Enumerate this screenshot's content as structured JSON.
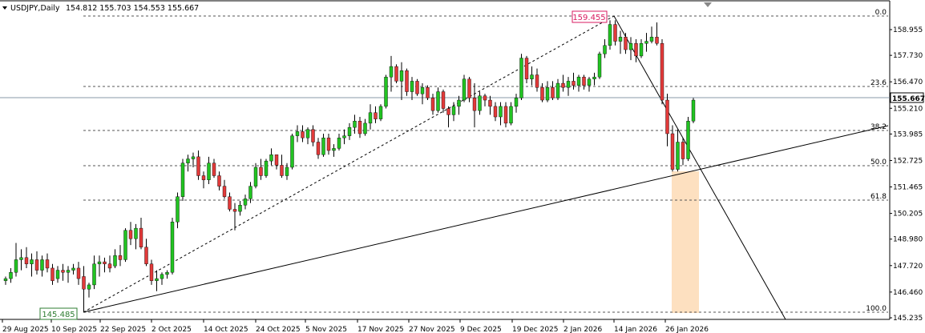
{
  "header": {
    "symbol": "USDJPY,Daily",
    "ohlc": "154.812 155.703 154.553 155.667"
  },
  "colors": {
    "up": "#22c322",
    "down": "#e23a3a",
    "wick": "#000000",
    "zone": "#fde0c0",
    "high_label": "#d81b60",
    "low_label": "#2e7d32"
  },
  "fib_levels": [
    "0.0",
    "23.6",
    "38.2",
    "50.0",
    "61.8",
    "100.0"
  ],
  "labels": {
    "high": "159.455",
    "low": "145.485",
    "current_price": "155.667"
  },
  "chart_data": {
    "type": "candlestick",
    "y_ticks": [
      "158.955",
      "157.730",
      "156.470",
      "155.210",
      "153.985",
      "152.725",
      "151.465",
      "150.205",
      "148.980",
      "147.720",
      "146.460",
      "145.235"
    ],
    "x_ticks": [
      "29 Aug 2025",
      "10 Sep 2025",
      "22 Sep 2025",
      "2 Oct 2025",
      "14 Oct 2025",
      "24 Oct 2025",
      "5 Nov 2025",
      "17 Nov 2025",
      "27 Nov 2025",
      "9 Dec 2025",
      "19 Dec 2025",
      "2 Jan 2026",
      "14 Jan 2026",
      "26 Jan 2026"
    ],
    "ylim": [
      145.1,
      160.5
    ],
    "candles": [
      [
        147.0,
        147.2,
        146.8,
        147.1
      ],
      [
        147.1,
        147.6,
        146.9,
        147.4
      ],
      [
        147.4,
        148.8,
        147.2,
        148.0
      ],
      [
        148.0,
        148.5,
        147.5,
        148.1
      ],
      [
        148.1,
        148.6,
        147.6,
        147.8
      ],
      [
        147.8,
        148.3,
        147.2,
        148.0
      ],
      [
        148.0,
        148.4,
        147.3,
        147.5
      ],
      [
        147.5,
        148.2,
        147.2,
        148.0
      ],
      [
        148.0,
        148.3,
        147.4,
        147.6
      ],
      [
        147.6,
        147.8,
        146.8,
        147.0
      ],
      [
        147.1,
        147.7,
        146.9,
        147.5
      ],
      [
        147.5,
        147.8,
        147.0,
        147.4
      ],
      [
        147.4,
        147.7,
        146.9,
        147.5
      ],
      [
        147.5,
        147.8,
        147.3,
        147.6
      ],
      [
        147.6,
        147.9,
        146.8,
        147.1
      ],
      [
        147.2,
        147.7,
        145.5,
        146.6
      ],
      [
        146.6,
        146.9,
        146.2,
        146.8
      ],
      [
        146.8,
        148.2,
        146.6,
        147.8
      ],
      [
        147.8,
        148.2,
        147.2,
        147.9
      ],
      [
        147.9,
        148.1,
        147.4,
        147.8
      ],
      [
        147.8,
        148.2,
        147.4,
        147.6
      ],
      [
        147.7,
        148.5,
        147.6,
        148.2
      ],
      [
        148.2,
        148.7,
        147.7,
        148.0
      ],
      [
        148.0,
        149.5,
        147.9,
        149.4
      ],
      [
        149.4,
        149.8,
        148.7,
        149.0
      ],
      [
        149.0,
        149.7,
        148.5,
        149.5
      ],
      [
        149.5,
        150.0,
        148.5,
        148.6
      ],
      [
        148.6,
        149.0,
        147.7,
        147.8
      ],
      [
        147.8,
        148.0,
        146.8,
        147.0
      ],
      [
        147.0,
        147.5,
        146.5,
        147.1
      ],
      [
        147.1,
        147.4,
        146.8,
        147.3
      ],
      [
        147.3,
        147.5,
        147.1,
        147.4
      ],
      [
        147.4,
        150.0,
        147.3,
        149.8
      ],
      [
        149.8,
        151.2,
        149.5,
        151.0
      ],
      [
        151.0,
        152.8,
        150.8,
        152.6
      ],
      [
        152.6,
        153.0,
        152.2,
        152.8
      ],
      [
        152.8,
        153.1,
        152.4,
        152.9
      ],
      [
        152.9,
        153.2,
        151.8,
        152.0
      ],
      [
        152.0,
        152.2,
        151.4,
        151.8
      ],
      [
        151.8,
        152.9,
        151.6,
        152.6
      ],
      [
        152.6,
        152.8,
        151.9,
        152.0
      ],
      [
        152.0,
        152.2,
        151.3,
        151.5
      ],
      [
        151.5,
        151.8,
        150.9,
        151.0
      ],
      [
        151.0,
        151.2,
        150.3,
        150.4
      ],
      [
        150.4,
        150.7,
        149.4,
        150.3
      ],
      [
        150.3,
        150.8,
        150.1,
        150.6
      ],
      [
        150.6,
        151.1,
        150.4,
        150.9
      ],
      [
        150.9,
        151.7,
        150.7,
        151.5
      ],
      [
        151.5,
        152.6,
        151.4,
        152.4
      ],
      [
        152.4,
        152.8,
        151.8,
        152.0
      ],
      [
        152.0,
        152.8,
        151.9,
        152.7
      ],
      [
        152.7,
        153.3,
        152.5,
        153.0
      ],
      [
        153.0,
        153.0,
        152.3,
        152.5
      ],
      [
        152.5,
        153.0,
        151.9,
        152.0
      ],
      [
        152.0,
        152.6,
        151.8,
        152.4
      ],
      [
        152.4,
        154.0,
        152.3,
        153.9
      ],
      [
        153.9,
        154.4,
        153.6,
        154.1
      ],
      [
        154.1,
        154.4,
        153.6,
        153.8
      ],
      [
        153.8,
        154.3,
        153.5,
        154.2
      ],
      [
        154.2,
        154.4,
        153.4,
        153.6
      ],
      [
        153.6,
        153.8,
        152.8,
        153.0
      ],
      [
        153.0,
        154.0,
        152.9,
        153.8
      ],
      [
        153.8,
        154.0,
        153.0,
        153.2
      ],
      [
        153.2,
        153.5,
        152.9,
        153.3
      ],
      [
        153.3,
        154.0,
        153.2,
        153.8
      ],
      [
        153.8,
        154.2,
        153.5,
        153.9
      ],
      [
        153.9,
        154.5,
        153.7,
        154.3
      ],
      [
        154.3,
        154.9,
        154.0,
        154.6
      ],
      [
        154.6,
        154.8,
        153.8,
        154.0
      ],
      [
        154.0,
        154.7,
        153.9,
        154.5
      ],
      [
        154.5,
        155.4,
        154.2,
        155.0
      ],
      [
        155.0,
        155.3,
        154.5,
        154.7
      ],
      [
        154.7,
        155.4,
        154.6,
        155.3
      ],
      [
        155.3,
        156.8,
        155.2,
        156.7
      ],
      [
        156.7,
        157.7,
        156.0,
        157.2
      ],
      [
        157.2,
        157.3,
        156.4,
        156.5
      ],
      [
        156.5,
        157.4,
        155.6,
        157.0
      ],
      [
        157.0,
        157.1,
        155.8,
        156.0
      ],
      [
        156.0,
        156.7,
        155.6,
        156.5
      ],
      [
        156.5,
        156.6,
        155.8,
        155.9
      ],
      [
        155.9,
        156.4,
        155.4,
        156.2
      ],
      [
        156.2,
        156.3,
        155.6,
        155.7
      ],
      [
        155.7,
        155.9,
        154.9,
        155.1
      ],
      [
        155.1,
        156.2,
        155.0,
        156.0
      ],
      [
        156.0,
        156.1,
        155.0,
        155.2
      ],
      [
        155.2,
        155.3,
        154.3,
        154.9
      ],
      [
        154.9,
        155.5,
        154.6,
        155.3
      ],
      [
        155.3,
        155.8,
        154.9,
        155.6
      ],
      [
        155.6,
        156.8,
        155.5,
        156.6
      ],
      [
        156.6,
        156.7,
        155.5,
        155.7
      ],
      [
        155.7,
        156.4,
        154.3,
        155.1
      ],
      [
        155.1,
        156.0,
        154.9,
        155.8
      ],
      [
        155.8,
        155.9,
        155.3,
        155.6
      ],
      [
        155.6,
        155.8,
        154.9,
        155.3
      ],
      [
        155.3,
        155.5,
        154.6,
        154.8
      ],
      [
        154.8,
        155.5,
        154.4,
        155.3
      ],
      [
        155.3,
        155.5,
        154.3,
        154.5
      ],
      [
        154.5,
        155.5,
        154.4,
        155.3
      ],
      [
        155.3,
        155.9,
        155.0,
        155.7
      ],
      [
        155.7,
        157.8,
        155.6,
        157.6
      ],
      [
        157.6,
        157.7,
        156.4,
        156.6
      ],
      [
        156.6,
        157.2,
        156.3,
        156.8
      ],
      [
        156.8,
        157.1,
        156.0,
        156.2
      ],
      [
        156.2,
        156.4,
        155.5,
        155.6
      ],
      [
        155.6,
        156.5,
        155.5,
        156.2
      ],
      [
        156.2,
        156.5,
        155.6,
        155.7
      ],
      [
        155.7,
        156.6,
        155.6,
        156.4
      ],
      [
        156.4,
        156.8,
        156.0,
        156.2
      ],
      [
        156.2,
        156.7,
        155.8,
        156.5
      ],
      [
        156.5,
        156.9,
        156.1,
        156.3
      ],
      [
        156.3,
        156.8,
        156.0,
        156.7
      ],
      [
        156.7,
        156.8,
        156.1,
        156.3
      ],
      [
        156.3,
        156.7,
        156.0,
        156.6
      ],
      [
        156.6,
        156.9,
        156.3,
        156.7
      ],
      [
        156.7,
        157.9,
        156.6,
        157.8
      ],
      [
        157.8,
        158.5,
        157.6,
        158.2
      ],
      [
        158.2,
        159.4,
        158.0,
        159.2
      ],
      [
        159.2,
        159.4,
        158.2,
        158.4
      ],
      [
        158.4,
        158.9,
        157.8,
        158.6
      ],
      [
        158.6,
        158.8,
        157.8,
        158.0
      ],
      [
        158.0,
        158.6,
        157.5,
        158.3
      ],
      [
        158.3,
        158.5,
        157.4,
        157.7
      ],
      [
        157.7,
        158.5,
        157.6,
        158.3
      ],
      [
        158.3,
        158.8,
        157.9,
        158.4
      ],
      [
        158.4,
        159.1,
        158.3,
        158.6
      ],
      [
        158.6,
        159.3,
        158.2,
        158.3
      ],
      [
        158.3,
        158.5,
        155.4,
        155.6
      ],
      [
        155.6,
        155.9,
        153.4,
        154.0
      ],
      [
        154.0,
        154.4,
        152.2,
        152.3
      ],
      [
        152.3,
        154.2,
        152.2,
        153.6
      ],
      [
        153.6,
        153.8,
        152.5,
        152.8
      ],
      [
        152.8,
        154.8,
        152.7,
        154.6
      ],
      [
        154.6,
        155.7,
        154.5,
        155.6
      ]
    ]
  }
}
